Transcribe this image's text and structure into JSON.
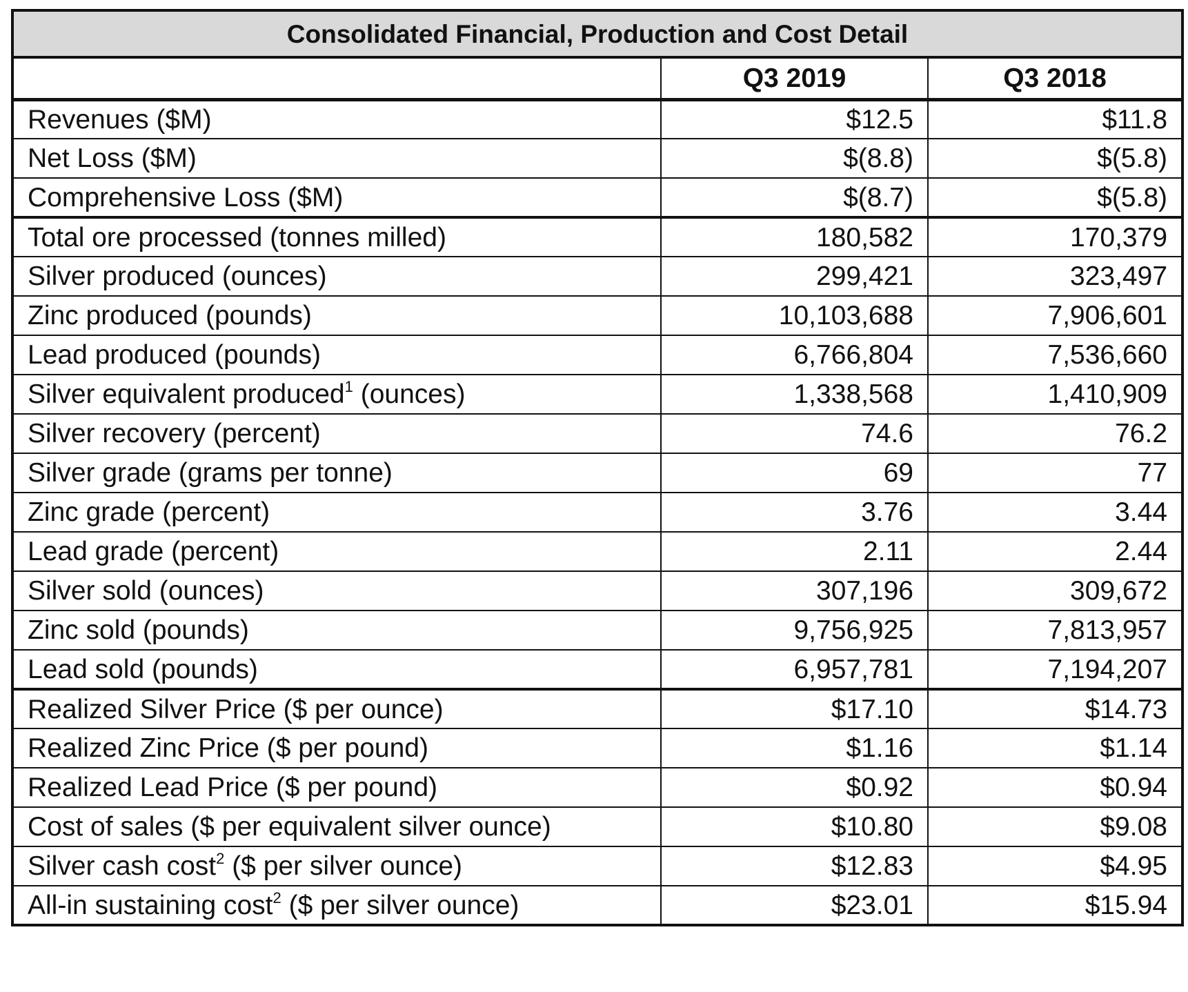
{
  "title": "Consolidated Financial, Production and Cost Detail",
  "columns": [
    "",
    "Q3 2019",
    "Q3 2018"
  ],
  "rows": [
    {
      "label": "Revenues ($M)",
      "sup": "",
      "suffix": "",
      "q3_2019": "$12.5",
      "q3_2018": "$11.8"
    },
    {
      "label": "Net Loss ($M)",
      "sup": "",
      "suffix": "",
      "q3_2019": "$(8.8)",
      "q3_2018": "$(5.8)"
    },
    {
      "label": "Comprehensive Loss ($M)",
      "sup": "",
      "suffix": "",
      "q3_2019": "$(8.7)",
      "q3_2018": "$(5.8)"
    },
    {
      "label": "Total ore processed (tonnes milled)",
      "sup": "",
      "suffix": "",
      "q3_2019": "180,582",
      "q3_2018": "170,379"
    },
    {
      "label": "Silver produced (ounces)",
      "sup": "",
      "suffix": "",
      "q3_2019": "299,421",
      "q3_2018": "323,497"
    },
    {
      "label": "Zinc produced (pounds)",
      "sup": "",
      "suffix": "",
      "q3_2019": "10,103,688",
      "q3_2018": "7,906,601"
    },
    {
      "label": "Lead produced (pounds)",
      "sup": "",
      "suffix": "",
      "q3_2019": "6,766,804",
      "q3_2018": "7,536,660"
    },
    {
      "label": "Silver equivalent produced",
      "sup": "1",
      "suffix": " (ounces)",
      "q3_2019": "1,338,568",
      "q3_2018": "1,410,909"
    },
    {
      "label": "Silver recovery (percent)",
      "sup": "",
      "suffix": "",
      "q3_2019": "74.6",
      "q3_2018": "76.2"
    },
    {
      "label": "Silver grade (grams per tonne)",
      "sup": "",
      "suffix": "",
      "q3_2019": "69",
      "q3_2018": "77"
    },
    {
      "label": "Zinc grade (percent)",
      "sup": "",
      "suffix": "",
      "q3_2019": "3.76",
      "q3_2018": "3.44"
    },
    {
      "label": "Lead grade (percent)",
      "sup": "",
      "suffix": "",
      "q3_2019": "2.11",
      "q3_2018": "2.44"
    },
    {
      "label": "Silver sold (ounces)",
      "sup": "",
      "suffix": "",
      "q3_2019": "307,196",
      "q3_2018": "309,672"
    },
    {
      "label": "Zinc sold (pounds)",
      "sup": "",
      "suffix": "",
      "q3_2019": "9,756,925",
      "q3_2018": "7,813,957"
    },
    {
      "label": "Lead sold (pounds)",
      "sup": "",
      "suffix": "",
      "q3_2019": "6,957,781",
      "q3_2018": "7,194,207"
    },
    {
      "label": "Realized Silver Price ($ per ounce)",
      "sup": "",
      "suffix": "",
      "q3_2019": "$17.10",
      "q3_2018": "$14.73"
    },
    {
      "label": "Realized Zinc Price ($ per pound)",
      "sup": "",
      "suffix": "",
      "q3_2019": "$1.16",
      "q3_2018": "$1.14"
    },
    {
      "label": "Realized Lead Price ($ per pound)",
      "sup": "",
      "suffix": "",
      "q3_2019": "$0.92",
      "q3_2018": "$0.94"
    },
    {
      "label": "Cost of sales ($ per equivalent silver ounce)",
      "sup": "",
      "suffix": "",
      "q3_2019": "$10.80",
      "q3_2018": "$9.08"
    },
    {
      "label": "Silver cash cost",
      "sup": "2",
      "suffix": " ($ per silver ounce)",
      "q3_2019": "$12.83",
      "q3_2018": "$4.95"
    },
    {
      "label": "All-in sustaining cost",
      "sup": "2",
      "suffix": " ($ per silver ounce)",
      "q3_2019": "$23.01",
      "q3_2018": "$15.94"
    }
  ]
}
